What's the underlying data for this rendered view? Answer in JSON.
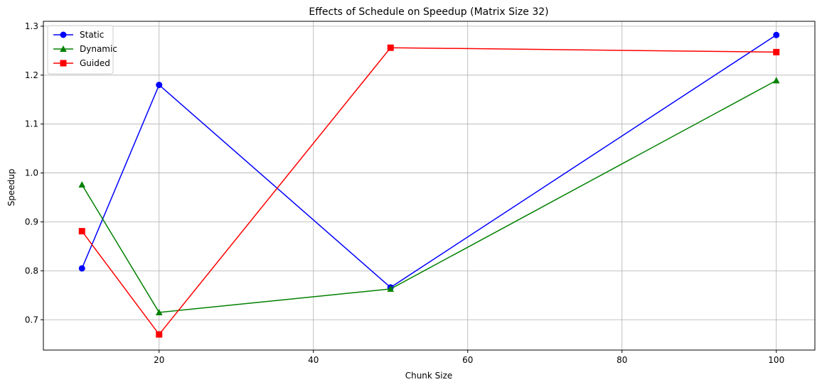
{
  "chart_data": {
    "type": "line",
    "title": "Effects of Schedule on Speedup (Matrix Size 32)",
    "xlabel": "Chunk Size",
    "ylabel": "Speedup",
    "x": [
      10,
      20,
      50,
      100
    ],
    "xlim": [
      5,
      105
    ],
    "ylim": [
      0.638,
      1.31
    ],
    "xticks": [
      20,
      40,
      60,
      80,
      100
    ],
    "yticks": [
      0.7,
      0.8,
      0.9,
      1.0,
      1.1,
      1.2,
      1.3
    ],
    "grid": true,
    "legend_position": "top-left",
    "series": [
      {
        "name": "Static",
        "values": [
          0.805,
          1.18,
          0.766,
          1.282
        ],
        "color": "#0000ff",
        "marker": "circle"
      },
      {
        "name": "Dynamic",
        "values": [
          0.976,
          0.715,
          0.763,
          1.189
        ],
        "color": "#008000",
        "marker": "triangle"
      },
      {
        "name": "Guided",
        "values": [
          0.881,
          0.67,
          1.256,
          1.247
        ],
        "color": "#ff0000",
        "marker": "square"
      }
    ]
  }
}
